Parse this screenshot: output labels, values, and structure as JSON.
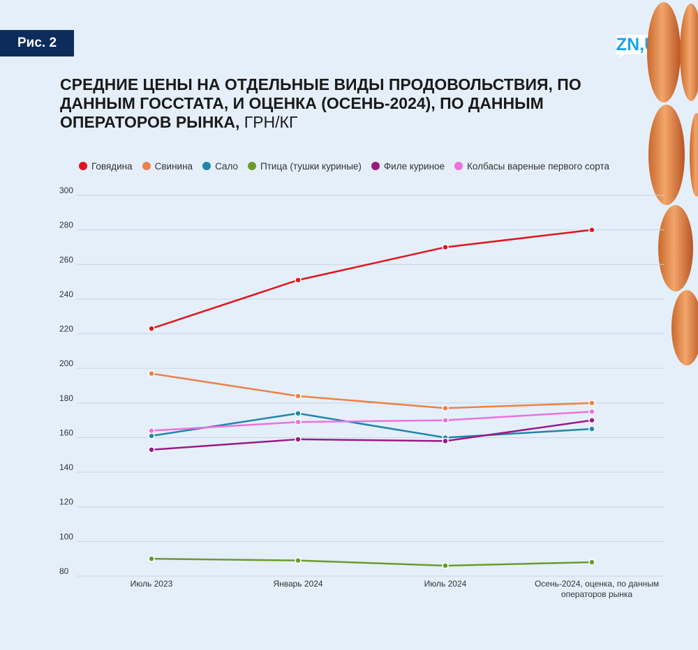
{
  "figure_label": "Рис. 2",
  "logo_text": "ZN,UA",
  "title": "Средние цены на отдельные виды продовольствия, по данным Госстата, и оценка (осень-2024), по данным операторов рынка,",
  "title_unit": "грн/кг",
  "colors": {
    "background": "#e4effa",
    "badge": "#0c2d5c",
    "logo": "#1aa3e8",
    "grid": "#c9d6e3",
    "axis_text": "#333333"
  },
  "chart_data": {
    "type": "line",
    "x": [
      "Июль 2023",
      "Январь 2024",
      "Июль 2024",
      "Осень-2024, оценка, по данным операторов рынка"
    ],
    "ylim": [
      80,
      300
    ],
    "yticks": [
      80,
      100,
      120,
      140,
      160,
      180,
      200,
      220,
      240,
      260,
      280,
      300
    ],
    "grid": true,
    "legend_position": "top",
    "series": [
      {
        "name": "Говядина",
        "color": "#e0141e",
        "values": [
          223,
          251,
          270,
          280
        ]
      },
      {
        "name": "Свинина",
        "color": "#ee8048",
        "values": [
          197,
          184,
          177,
          180
        ]
      },
      {
        "name": "Сало",
        "color": "#1f86a8",
        "values": [
          161,
          174,
          160,
          165
        ]
      },
      {
        "name": "Птица (тушки куриные)",
        "color": "#6b9a2c",
        "values": [
          90,
          89,
          86,
          88
        ]
      },
      {
        "name": "Филе куриное",
        "color": "#9a1a86",
        "values": [
          153,
          159,
          158,
          170
        ]
      },
      {
        "name": "Колбасы вареные первого сорта",
        "color": "#ee70df",
        "values": [
          164,
          169,
          170,
          175
        ]
      }
    ]
  }
}
